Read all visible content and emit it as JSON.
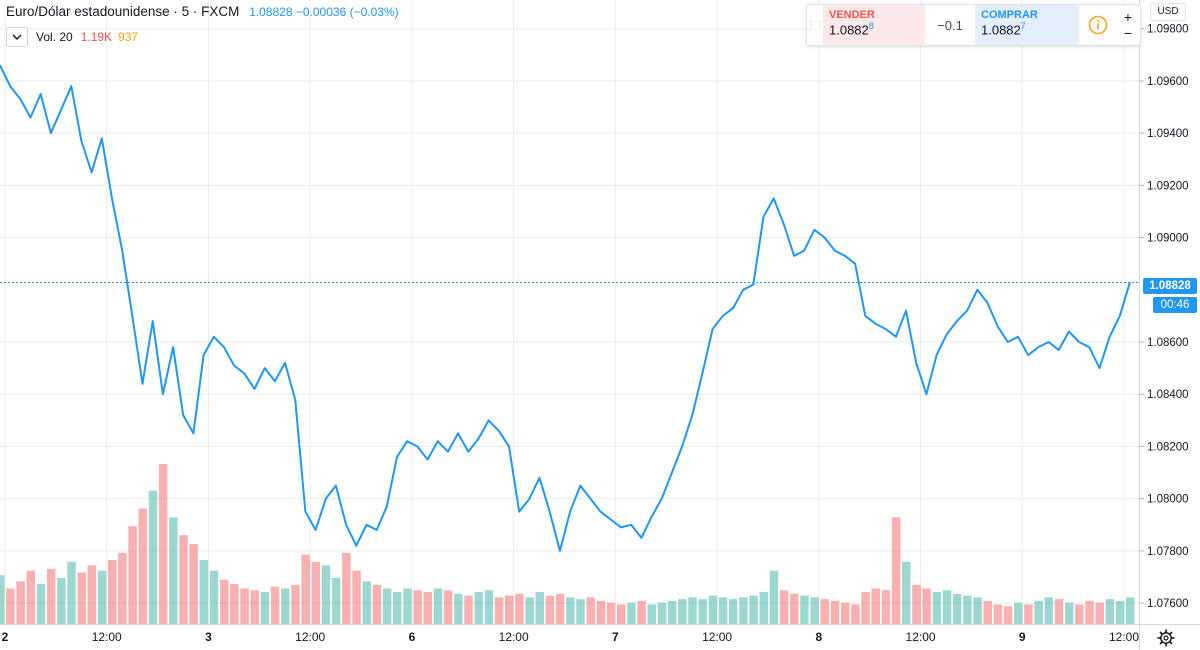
{
  "header": {
    "symbol": "Euro/Dólar estadounidense · 5 · FXCM",
    "last": "1.08828",
    "change": "−0.00036",
    "change_pct": "(−0.03%)"
  },
  "volume_legend": {
    "label": "Vol. 20",
    "value_red": "1.19K",
    "value_orange": "937"
  },
  "trade_panel": {
    "sell_label": "VENDER",
    "sell_price": "1.0882",
    "sell_pip": "8",
    "spread": "−0.1",
    "buy_label": "COMPRAR",
    "buy_price": "1.0882",
    "buy_pip": "7",
    "plus": "+",
    "minus": "−"
  },
  "currency": "USD",
  "last_price_tag": "1.08828",
  "countdown_tag": "00:46",
  "colors": {
    "line": "#2196f3",
    "vol_up": "#26a69a",
    "vol_down": "#ef5350",
    "grid": "#e9ecf0"
  },
  "chart_data": {
    "type": "line",
    "title": "Euro/Dólar estadounidense · 5 · FXCM",
    "ylabel": "USD",
    "ylim": [
      1.0752,
      1.0991
    ],
    "y_ticks": [
      "1.09800",
      "1.09600",
      "1.09400",
      "1.09200",
      "1.09000",
      "1.08600",
      "1.08400",
      "1.08200",
      "1.08000",
      "1.07800",
      "1.07600"
    ],
    "x_tick_labels": [
      "2",
      "12:00",
      "3",
      "12:00",
      "6",
      "12:00",
      "7",
      "12:00",
      "8",
      "12:00",
      "9",
      "12:00"
    ],
    "last_value": 1.08828,
    "series": [
      {
        "name": "EUR/USD",
        "x": [
          0,
          1,
          2,
          3,
          4,
          5,
          6,
          7,
          8,
          9,
          10,
          11,
          12,
          13,
          14,
          15,
          16,
          17,
          18,
          19,
          20,
          21,
          22,
          23,
          24,
          25,
          26,
          27,
          28,
          29,
          30,
          31,
          32,
          33,
          34,
          35,
          36,
          37,
          38,
          39,
          40,
          41,
          42,
          43,
          44,
          45,
          46,
          47,
          48,
          49,
          50,
          51,
          52,
          53,
          54,
          55,
          56,
          57,
          58,
          59,
          60,
          61,
          62,
          63,
          64,
          65,
          66,
          67,
          68,
          69,
          70,
          71,
          72,
          73,
          74,
          75,
          76,
          77,
          78,
          79,
          80,
          81,
          82,
          83,
          84,
          85,
          86,
          87,
          88,
          89,
          90,
          91,
          92,
          93,
          94,
          95,
          96,
          97,
          98,
          99,
          100,
          101,
          102,
          103,
          104,
          105,
          106,
          107,
          108,
          109,
          110,
          111
        ],
        "values": [
          1.0966,
          1.0958,
          1.0953,
          1.0946,
          1.0955,
          1.094,
          1.0949,
          1.0958,
          1.0937,
          1.0925,
          1.0938,
          1.0915,
          1.0895,
          1.087,
          1.0844,
          1.0868,
          1.084,
          1.0858,
          1.0832,
          1.0825,
          1.0855,
          1.0862,
          1.0858,
          1.0851,
          1.0848,
          1.0842,
          1.085,
          1.0845,
          1.0852,
          1.0838,
          1.0795,
          1.0788,
          1.08,
          1.0805,
          1.079,
          1.0782,
          1.079,
          1.0788,
          1.0797,
          1.0816,
          1.0822,
          1.082,
          1.0815,
          1.0822,
          1.0818,
          1.0825,
          1.0818,
          1.0823,
          1.083,
          1.0826,
          1.082,
          1.0795,
          1.08,
          1.0808,
          1.0795,
          1.078,
          1.0795,
          1.0805,
          1.08,
          1.0795,
          1.0792,
          1.0789,
          1.079,
          1.0785,
          1.0793,
          1.08,
          1.081,
          1.082,
          1.0832,
          1.0848,
          1.0865,
          1.087,
          1.0873,
          1.088,
          1.0882,
          1.0908,
          1.0915,
          1.0905,
          1.0893,
          1.0895,
          1.0903,
          1.09,
          1.0895,
          1.0893,
          1.089,
          1.087,
          1.0867,
          1.0865,
          1.0862,
          1.0872,
          1.0852,
          1.084,
          1.0855,
          1.0863,
          1.0868,
          1.0872,
          1.088,
          1.0875,
          1.0866,
          1.086,
          1.0862,
          1.0855,
          1.0858,
          1.086,
          1.0857,
          1.0864,
          1.086,
          1.0858,
          1.085,
          1.0862,
          1.087,
          1.0883
        ]
      }
    ],
    "volume": {
      "name": "Vol. 20",
      "values": [
        55,
        40,
        48,
        60,
        45,
        62,
        52,
        70,
        58,
        66,
        60,
        72,
        80,
        110,
        130,
        150,
        180,
        120,
        100,
        90,
        72,
        60,
        50,
        45,
        40,
        38,
        36,
        42,
        40,
        44,
        78,
        70,
        66,
        52,
        80,
        60,
        48,
        44,
        40,
        36,
        40,
        38,
        36,
        40,
        38,
        34,
        32,
        36,
        38,
        30,
        32,
        34,
        30,
        36,
        32,
        34,
        30,
        28,
        30,
        26,
        24,
        22,
        24,
        26,
        22,
        24,
        26,
        28,
        30,
        28,
        32,
        30,
        28,
        30,
        32,
        36,
        60,
        38,
        34,
        32,
        30,
        28,
        26,
        24,
        22,
        36,
        40,
        38,
        120,
        70,
        44,
        40,
        36,
        38,
        34,
        32,
        30,
        26,
        22,
        20,
        24,
        22,
        26,
        30,
        28,
        24,
        22,
        26,
        24,
        28,
        26,
        30
      ]
    }
  }
}
